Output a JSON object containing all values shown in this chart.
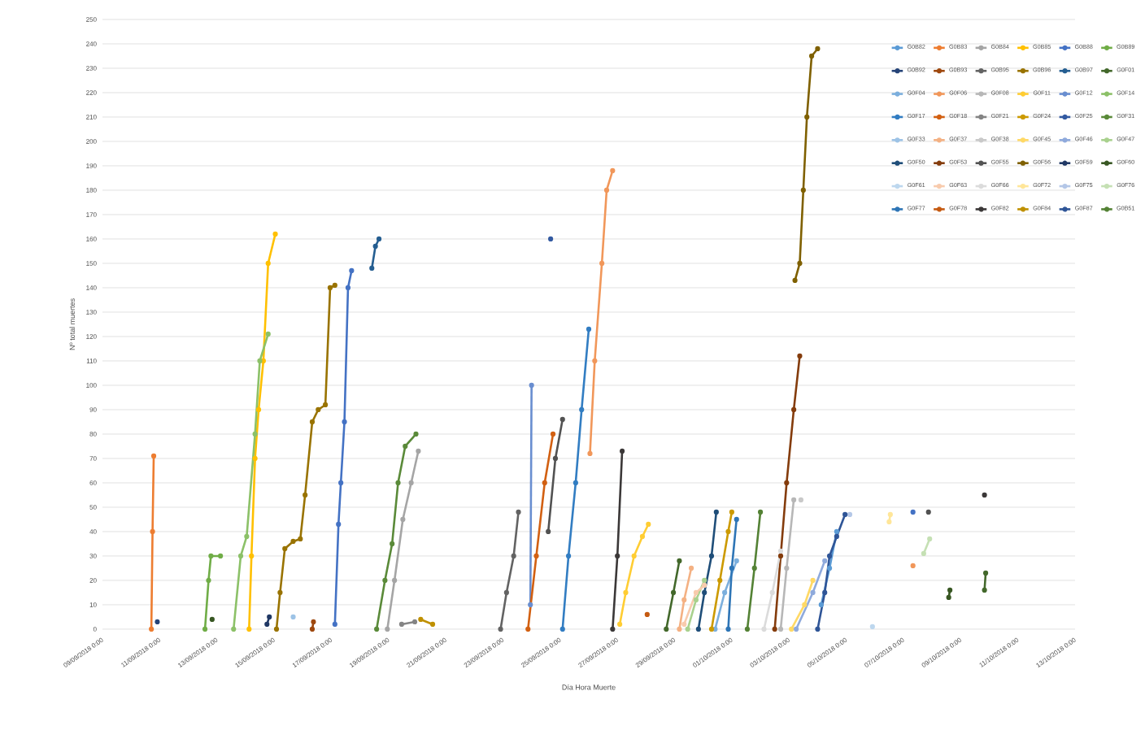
{
  "chart_data": {
    "type": "line",
    "xlabel": "Día Hora Muerte",
    "ylabel": "Nº total muertes",
    "xlim": [
      "2018-09-09T00:00",
      "2018-10-13T00:00"
    ],
    "xticks": [
      {
        "value": "2018-09-09T00:00",
        "label": "09/09/2018 0:00"
      },
      {
        "value": "2018-09-11T00:00",
        "label": "11/09/2018 0:00"
      },
      {
        "value": "2018-09-13T00:00",
        "label": "13/09/2018 0:00"
      },
      {
        "value": "2018-09-15T00:00",
        "label": "15/09/2018 0:00"
      },
      {
        "value": "2018-09-17T00:00",
        "label": "17/09/2018 0:00"
      },
      {
        "value": "2018-09-19T00:00",
        "label": "19/09/2018 0:00"
      },
      {
        "value": "2018-09-21T00:00",
        "label": "21/09/2018 0:00"
      },
      {
        "value": "2018-09-23T00:00",
        "label": "23/09/2018 0:00"
      },
      {
        "value": "2018-09-25T00:00",
        "label": "25/09/2018 0:00"
      },
      {
        "value": "2018-09-27T00:00",
        "label": "27/09/2018 0:00"
      },
      {
        "value": "2018-09-29T00:00",
        "label": "29/09/2018 0:00"
      },
      {
        "value": "2018-10-01T00:00",
        "label": "01/10/2018 0:00"
      },
      {
        "value": "2018-10-03T00:00",
        "label": "03/10/2018 0:00"
      },
      {
        "value": "2018-10-05T00:00",
        "label": "05/10/2018 0:00"
      },
      {
        "value": "2018-10-07T00:00",
        "label": "07/10/2018 0:00"
      },
      {
        "value": "2018-10-09T00:00",
        "label": "09/10/2018 0:00"
      },
      {
        "value": "2018-10-11T00:00",
        "label": "11/10/2018 0:00"
      },
      {
        "value": "2018-10-13T00:00",
        "label": "13/10/2018 0:00"
      }
    ],
    "ylim": [
      0,
      250
    ],
    "yticks": [
      0,
      10,
      20,
      30,
      40,
      50,
      60,
      70,
      80,
      90,
      100,
      110,
      120,
      130,
      140,
      150,
      160,
      170,
      180,
      190,
      200,
      210,
      220,
      230,
      240,
      250
    ],
    "grid": "y",
    "legend": "top right",
    "marker": "circle",
    "line_style": "solid",
    "series": [
      {
        "name": "G0B82",
        "color": "#5b9bd5",
        "x": [
          "2018-10-04T03:00",
          "2018-10-04T10:00",
          "2018-10-04T16:00"
        ],
        "values": [
          10,
          25,
          40
        ]
      },
      {
        "name": "G0B83",
        "color": "#ed7d31",
        "x": [
          "2018-09-10T17:00",
          "2018-09-10T18:00",
          "2018-09-10T19:00"
        ],
        "values": [
          0,
          40,
          71
        ]
      },
      {
        "name": "G0B84",
        "color": "#a5a5a5",
        "x": [
          "2018-09-18T23:00",
          "2018-09-19T05:00",
          "2018-09-19T12:00",
          "2018-09-19T19:00",
          "2018-09-20T01:00"
        ],
        "values": [
          0,
          20,
          45,
          60,
          73
        ]
      },
      {
        "name": "G0B85",
        "color": "#ffc000",
        "x": [
          "2018-09-14T03:00",
          "2018-09-14T05:00",
          "2018-09-14T08:00",
          "2018-09-14T11:00",
          "2018-09-14T15:00",
          "2018-09-14T19:00",
          "2018-09-15T01:00"
        ],
        "values": [
          0,
          30,
          70,
          90,
          110,
          150,
          162
        ]
      },
      {
        "name": "G0B88",
        "color": "#4472c4",
        "x": [
          "2018-09-17T03:00",
          "2018-09-17T06:00",
          "2018-09-17T08:00",
          "2018-09-17T11:00",
          "2018-09-17T14:00",
          "2018-09-17T17:00",
          "2018-09-17T18:00",
          "2018-10-07T08:00"
        ],
        "values": [
          2,
          43,
          60,
          85,
          140,
          147,
          null,
          48
        ]
      },
      {
        "name": "G0B89",
        "color": "#70ad47",
        "x": [
          "2018-09-12T14:00",
          "2018-09-12T17:00",
          "2018-09-12T19:00",
          "2018-09-13T03:00"
        ],
        "values": [
          0,
          20,
          30,
          30
        ]
      },
      {
        "name": "G0B92",
        "color": "#264478",
        "x": [
          "2018-09-10T22:00"
        ],
        "values": [
          3
        ]
      },
      {
        "name": "G0B93",
        "color": "#9e480e",
        "x": [
          "2018-09-16T08:00",
          "2018-09-16T09:00"
        ],
        "values": [
          0,
          3
        ]
      },
      {
        "name": "G0B95",
        "color": "#636363",
        "x": [
          "2018-09-22T22:00",
          "2018-09-23T03:00",
          "2018-09-23T09:00",
          "2018-09-23T13:00"
        ],
        "values": [
          0,
          15,
          30,
          48
        ]
      },
      {
        "name": "G0B96",
        "color": "#997300",
        "x": [
          "2018-09-15T02:00",
          "2018-09-15T05:00",
          "2018-09-15T09:00",
          "2018-09-15T16:00",
          "2018-09-15T22:00",
          "2018-09-16T02:00",
          "2018-09-16T08:00",
          "2018-09-16T13:00",
          "2018-09-16T19:00",
          "2018-09-16T23:00",
          "2018-09-17T03:00"
        ],
        "values": [
          0,
          15,
          33,
          36,
          37,
          55,
          85,
          90,
          92,
          140,
          141
        ]
      },
      {
        "name": "G0B97",
        "color": "#255e91",
        "x": [
          "2018-09-18T10:00",
          "2018-09-18T13:00",
          "2018-09-18T16:00"
        ],
        "values": [
          148,
          157,
          160
        ]
      },
      {
        "name": "G0F01",
        "color": "#43682b",
        "x": [
          "2018-09-28T17:00",
          "2018-09-28T23:00",
          "2018-09-29T04:00",
          "2018-09-29T05:00",
          "2018-10-09T20:00",
          "2018-10-09T21:00"
        ],
        "values": [
          0,
          15,
          28,
          null,
          16,
          23
        ]
      },
      {
        "name": "G0F04",
        "color": "#7cafdd",
        "x": [
          "2018-09-30T10:00",
          "2018-09-30T18:00",
          "2018-10-01T04:00"
        ],
        "values": [
          0,
          15,
          28
        ]
      },
      {
        "name": "G0F06",
        "color": "#f1975a",
        "x": [
          "2018-09-26T01:00",
          "2018-09-26T05:00",
          "2018-09-26T11:00",
          "2018-09-26T15:00",
          "2018-09-26T20:00",
          "2018-09-26T21:00",
          "2018-10-07T08:00"
        ],
        "values": [
          72,
          110,
          150,
          180,
          188,
          null,
          26
        ]
      },
      {
        "name": "G0F08",
        "color": "#b7b7b7",
        "x": [
          "2018-10-02T17:00",
          "2018-10-02T22:00",
          "2018-10-03T04:00"
        ],
        "values": [
          0,
          25,
          53
        ]
      },
      {
        "name": "G0F11",
        "color": "#ffcd33",
        "x": [
          "2018-09-27T02:00",
          "2018-09-27T07:00",
          "2018-09-27T14:00",
          "2018-09-27T21:00",
          "2018-09-28T02:00"
        ],
        "values": [
          2,
          15,
          30,
          38,
          43
        ]
      },
      {
        "name": "G0F12",
        "color": "#698ed0",
        "x": [
          "2018-09-23T23:00",
          "2018-09-24T00:00"
        ],
        "values": [
          10,
          100
        ]
      },
      {
        "name": "G0F14",
        "color": "#8cc168",
        "x": [
          "2018-09-13T14:00",
          "2018-09-13T20:00",
          "2018-09-14T01:00",
          "2018-09-14T08:00",
          "2018-09-14T12:00",
          "2018-09-14T19:00"
        ],
        "values": [
          0,
          30,
          38,
          80,
          110,
          121
        ]
      },
      {
        "name": "G0F17",
        "color": "#327dc2",
        "x": [
          "2018-09-25T02:00",
          "2018-09-25T07:00",
          "2018-09-25T13:00",
          "2018-09-25T18:00",
          "2018-09-26T00:00"
        ],
        "values": [
          0,
          30,
          60,
          90,
          123
        ]
      },
      {
        "name": "G0F18",
        "color": "#d26012",
        "x": [
          "2018-09-23T21:00",
          "2018-09-24T04:00",
          "2018-09-24T11:00",
          "2018-09-24T18:00"
        ],
        "values": [
          0,
          30,
          60,
          80
        ]
      },
      {
        "name": "G0F21",
        "color": "#848484",
        "x": [
          "2018-09-19T11:00",
          "2018-09-19T22:00"
        ],
        "values": [
          2,
          3
        ]
      },
      {
        "name": "G0F24",
        "color": "#cc9a00",
        "x": [
          "2018-09-30T07:00",
          "2018-09-30T14:00",
          "2018-09-30T21:00",
          "2018-10-01T00:00"
        ],
        "values": [
          0,
          20,
          40,
          48
        ]
      },
      {
        "name": "G0F25",
        "color": "#335aa1",
        "x": [
          "2018-09-24T16:00"
        ],
        "values": [
          160
        ]
      },
      {
        "name": "G0F31",
        "color": "#5a8a39",
        "x": [
          "2018-09-18T14:00",
          "2018-09-18T21:00",
          "2018-09-19T03:00",
          "2018-09-19T08:00",
          "2018-09-19T14:00",
          "2018-09-19T23:00"
        ],
        "values": [
          0,
          20,
          35,
          60,
          75,
          80
        ]
      },
      {
        "name": "G0F33",
        "color": "#9dc3e6",
        "x": [
          "2018-09-15T16:00"
        ],
        "values": [
          5
        ]
      },
      {
        "name": "G0F37",
        "color": "#f4b183",
        "x": [
          "2018-09-29T04:00",
          "2018-09-29T08:00",
          "2018-09-29T14:00"
        ],
        "values": [
          0,
          12,
          25
        ]
      },
      {
        "name": "G0F38",
        "color": "#c9c9c9",
        "x": [
          "2018-10-03T10:00"
        ],
        "values": [
          53
        ]
      },
      {
        "name": "G0F45",
        "color": "#ffd966",
        "x": [
          "2018-10-03T02:00",
          "2018-10-03T13:00",
          "2018-10-03T20:00"
        ],
        "values": [
          0,
          10,
          20
        ]
      },
      {
        "name": "G0F46",
        "color": "#8faadc",
        "x": [
          "2018-10-03T06:00",
          "2018-10-03T20:00",
          "2018-10-04T06:00"
        ],
        "values": [
          0,
          15,
          28
        ]
      },
      {
        "name": "G0F47",
        "color": "#a9d18e",
        "x": [
          "2018-09-29T11:00",
          "2018-09-29T18:00",
          "2018-09-30T01:00"
        ],
        "values": [
          0,
          12,
          20
        ]
      },
      {
        "name": "G0F50",
        "color": "#1f4e79",
        "x": [
          "2018-09-29T20:00",
          "2018-09-30T01:00",
          "2018-09-30T07:00",
          "2018-09-30T11:00"
        ],
        "values": [
          0,
          15,
          30,
          48
        ]
      },
      {
        "name": "G0F53",
        "color": "#843c0c",
        "x": [
          "2018-10-02T12:00",
          "2018-10-02T17:00",
          "2018-10-02T22:00",
          "2018-10-03T04:00",
          "2018-10-03T09:00"
        ],
        "values": [
          0,
          30,
          60,
          90,
          112
        ]
      },
      {
        "name": "G0F55",
        "color": "#525252",
        "x": [
          "2018-09-24T14:00",
          "2018-09-24T20:00",
          "2018-09-25T02:00",
          "2018-09-25T03:00",
          "2018-10-07T21:00"
        ],
        "values": [
          40,
          70,
          86,
          null,
          48
        ]
      },
      {
        "name": "G0F56",
        "color": "#7f6000",
        "x": [
          "2018-10-03T05:00",
          "2018-10-03T09:00",
          "2018-10-03T12:00",
          "2018-10-03T15:00",
          "2018-10-03T19:00",
          "2018-10-04T00:00"
        ],
        "values": [
          143,
          150,
          180,
          210,
          235,
          238
        ]
      },
      {
        "name": "G0F59",
        "color": "#203864",
        "x": [
          "2018-09-14T18:00",
          "2018-09-14T20:00"
        ],
        "values": [
          2,
          5
        ]
      },
      {
        "name": "G0F60",
        "color": "#385723",
        "x": [
          "2018-09-12T20:00",
          "2018-09-12T21:00",
          "2018-10-08T14:00",
          "2018-10-08T15:00"
        ],
        "values": [
          4,
          null,
          13,
          16
        ]
      },
      {
        "name": "G0F61",
        "color": "#bdd7ee",
        "x": [
          "2018-10-05T22:00"
        ],
        "values": [
          1
        ]
      },
      {
        "name": "G0F63",
        "color": "#f8cbad",
        "x": [
          "2018-09-29T08:00",
          "2018-09-29T18:00",
          "2018-09-30T01:00"
        ],
        "values": [
          2,
          15,
          18
        ]
      },
      {
        "name": "G0F66",
        "color": "#dbdbdb",
        "x": [
          "2018-10-02T03:00",
          "2018-10-02T10:00",
          "2018-10-02T17:00"
        ],
        "values": [
          0,
          15,
          32
        ]
      },
      {
        "name": "G0F72",
        "color": "#ffe699",
        "x": [
          "2018-10-06T12:00",
          "2018-10-06T13:00"
        ],
        "values": [
          44,
          47
        ]
      },
      {
        "name": "G0F75",
        "color": "#b4c7e7",
        "x": [
          "2018-10-05T03:00"
        ],
        "values": [
          47
        ]
      },
      {
        "name": "G0F76",
        "color": "#c5e0b4",
        "x": [
          "2018-10-07T17:00",
          "2018-10-07T22:00"
        ],
        "values": [
          31,
          37
        ]
      },
      {
        "name": "G0F77",
        "color": "#2e75b6",
        "x": [
          "2018-09-30T21:00",
          "2018-10-01T00:00",
          "2018-10-01T04:00"
        ],
        "values": [
          0,
          25,
          45
        ]
      },
      {
        "name": "G0F78",
        "color": "#c55a11",
        "x": [
          "2018-09-28T01:00"
        ],
        "values": [
          6
        ]
      },
      {
        "name": "G0F82",
        "color": "#3b3838",
        "x": [
          "2018-09-26T20:00",
          "2018-09-27T00:00",
          "2018-09-27T04:00",
          "2018-09-27T05:00",
          "2018-10-09T20:00"
        ],
        "values": [
          0,
          30,
          73,
          null,
          55
        ]
      },
      {
        "name": "G0F84",
        "color": "#bf9000",
        "x": [
          "2018-09-20T03:00",
          "2018-09-20T13:00"
        ],
        "values": [
          4,
          2
        ]
      },
      {
        "name": "G0F87",
        "color": "#2f5597",
        "x": [
          "2018-10-04T00:00",
          "2018-10-04T06:00",
          "2018-10-04T10:00",
          "2018-10-04T16:00",
          "2018-10-04T23:00"
        ],
        "values": [
          0,
          15,
          30,
          38,
          47
        ]
      },
      {
        "name": "G0B51",
        "color": "#548235",
        "x": [
          "2018-10-01T13:00",
          "2018-10-01T19:00",
          "2018-10-02T00:00"
        ],
        "values": [
          0,
          25,
          48
        ]
      }
    ]
  }
}
